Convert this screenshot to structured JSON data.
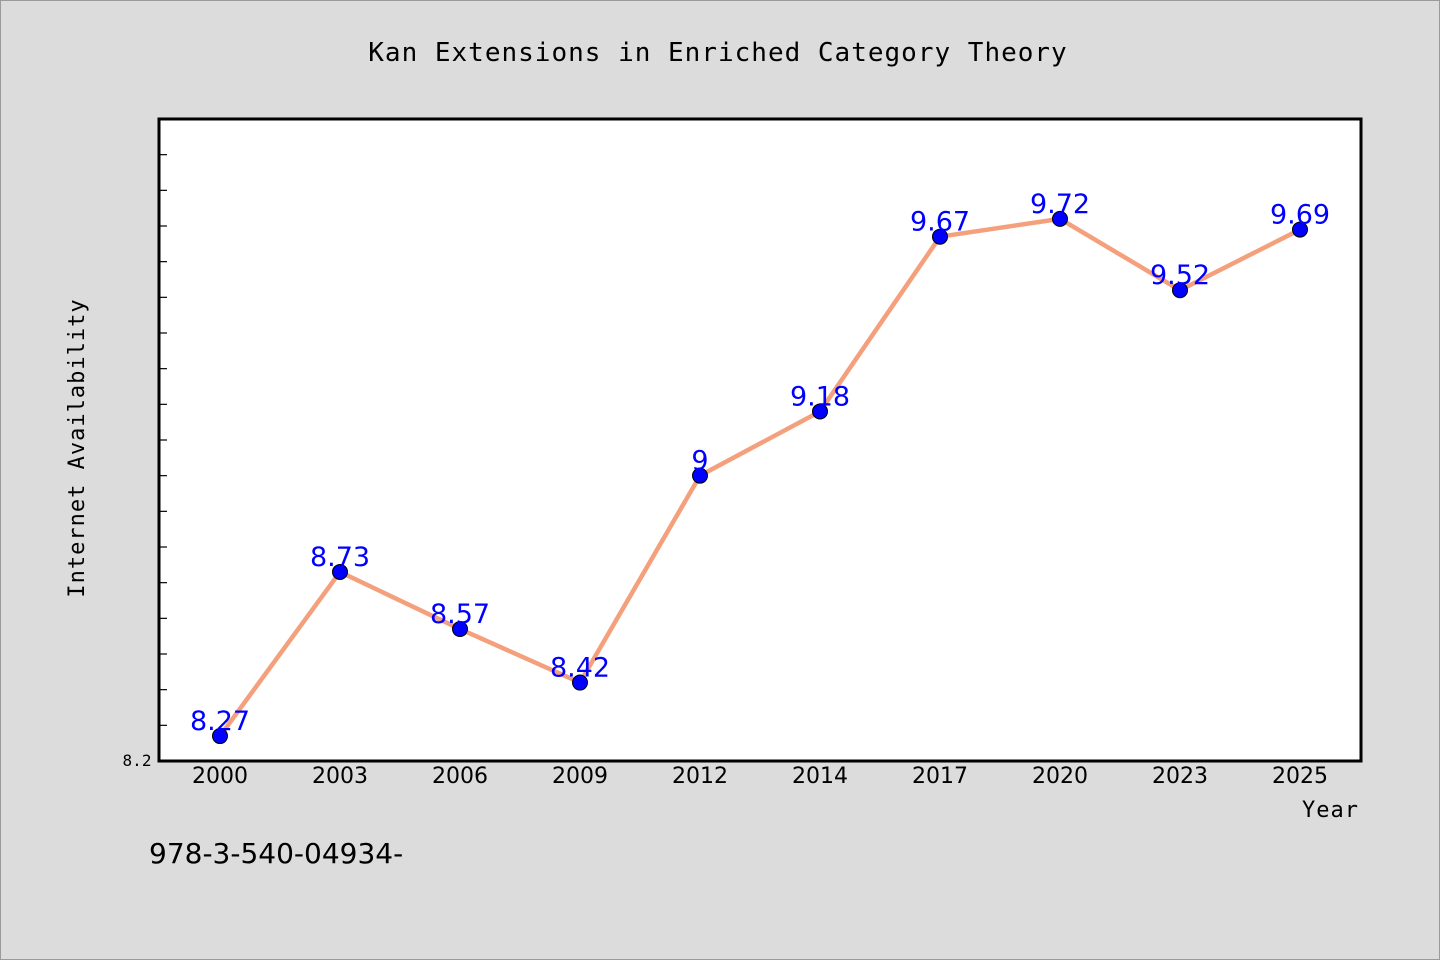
{
  "chart_data": {
    "type": "line",
    "title": "Kan Extensions in Enriched Category Theory",
    "xlabel": "Year",
    "ylabel": "Internet Availability",
    "categories": [
      "2000",
      "2003",
      "2006",
      "2009",
      "2012",
      "2014",
      "2017",
      "2020",
      "2023",
      "2025"
    ],
    "series": [
      {
        "values": [
          8.27,
          8.73,
          8.57,
          8.42,
          9,
          9.18,
          9.67,
          9.72,
          9.52,
          9.69
        ],
        "labels": [
          "8.27",
          "8.73",
          "8.57",
          "8.42",
          "9",
          "9.18",
          "9.67",
          "9.72",
          "9.52",
          "9.69"
        ],
        "line_color": "#f4a07c",
        "marker_color": "#0000ff"
      }
    ],
    "ylim": [
      8.2,
      10.0
    ],
    "y_min_label": "8.2",
    "grid": false,
    "legend": "none"
  },
  "footer": {
    "text": "978-3-540-04934-"
  },
  "colors": {
    "background": "#dcdcdc",
    "plot_background": "#ffffff",
    "line": "#f4a07c",
    "marker": "#0000ff",
    "data_label": "#0000ff"
  }
}
